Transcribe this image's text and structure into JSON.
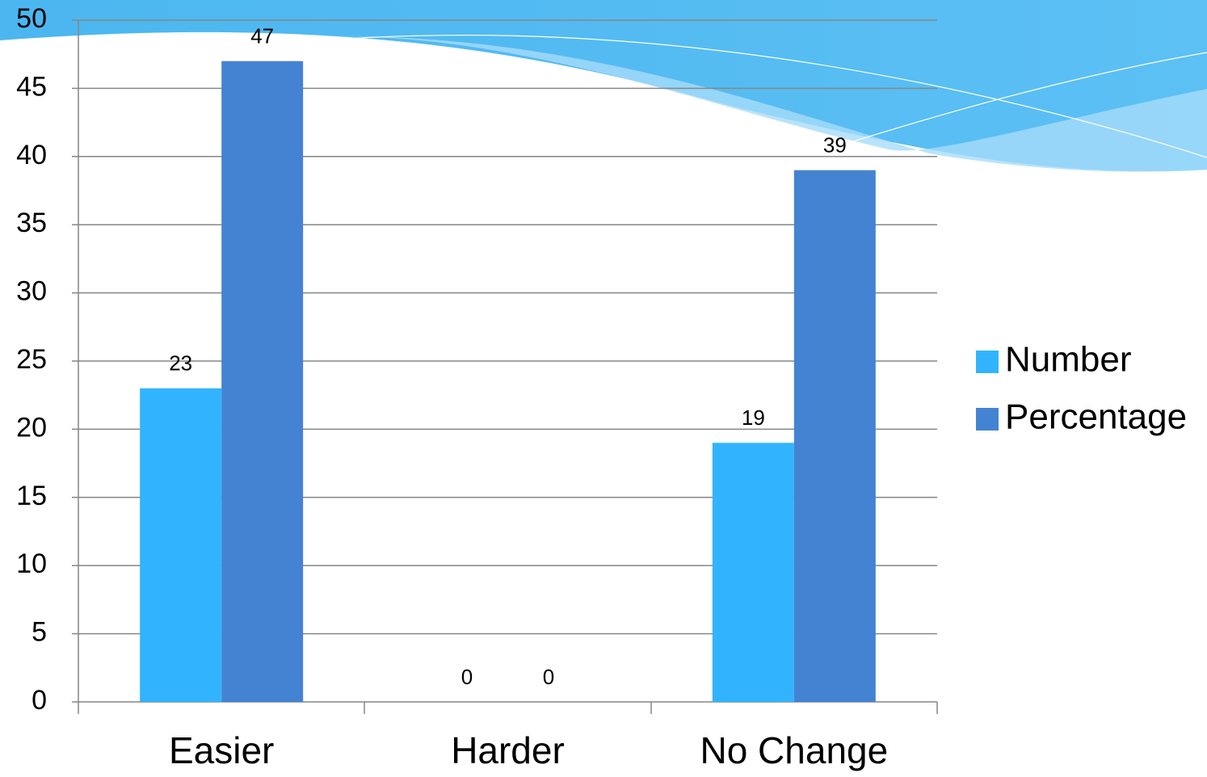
{
  "chart_data": {
    "type": "bar",
    "categories": [
      "Easier",
      "Harder",
      "No Change"
    ],
    "series": [
      {
        "name": "Number",
        "color": "#31b4fd",
        "values": [
          23,
          0,
          19
        ]
      },
      {
        "name": "Percentage",
        "color": "#4483d2",
        "values": [
          47,
          0,
          39
        ]
      }
    ],
    "ylim": [
      0,
      50
    ],
    "yticks": [
      0,
      5,
      10,
      15,
      20,
      25,
      30,
      35,
      40,
      45,
      50
    ],
    "grid": true,
    "legend": "right"
  }
}
